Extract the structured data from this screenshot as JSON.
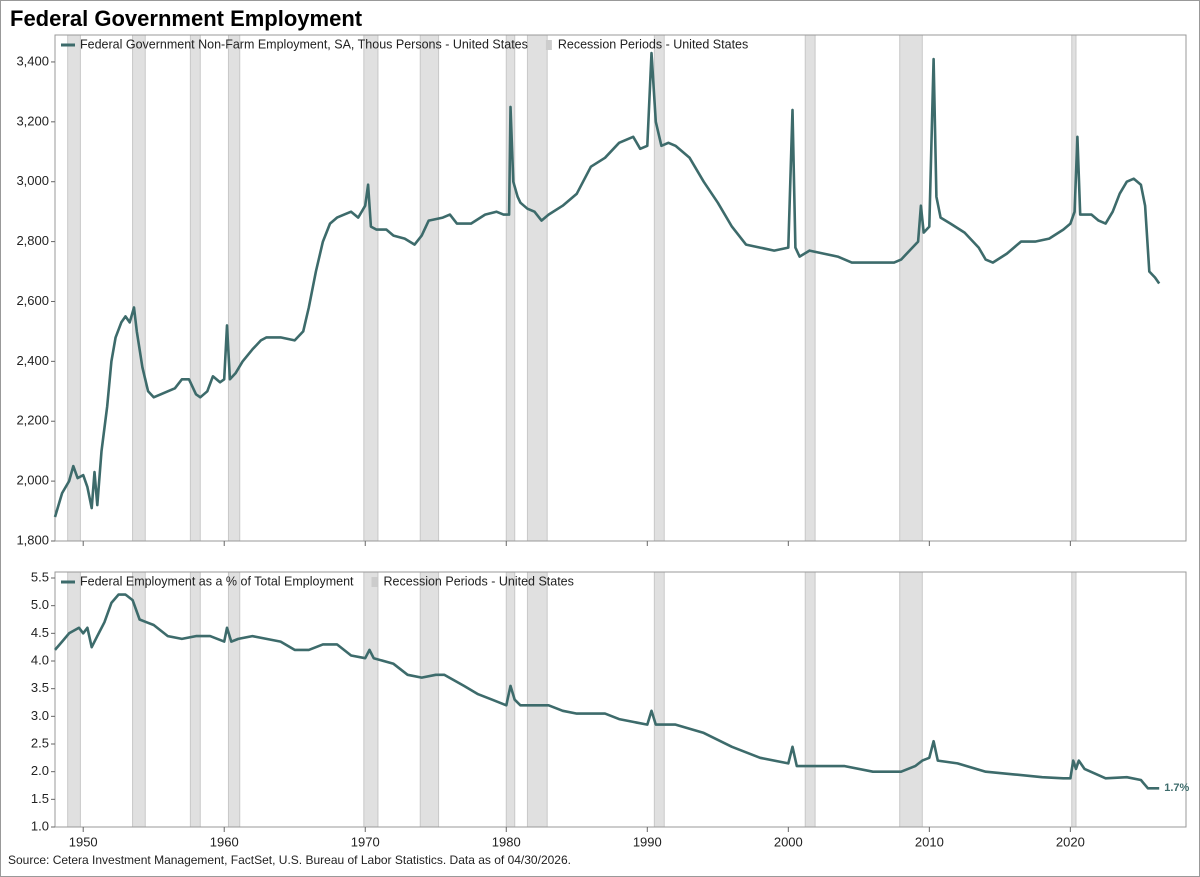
{
  "title": "Federal Government Employment",
  "source": "Source: Cetera Investment Management, FactSet, U.S. Bureau of Labor Statistics. Data as of 04/30/2026.",
  "chart_data": [
    {
      "type": "line",
      "recessions": {
        "name": "Recession Periods - United States",
        "color": "#e0e0e0",
        "periods": [
          [
            1948.9,
            1949.8
          ],
          [
            1953.5,
            1954.4
          ],
          [
            1957.6,
            1958.3
          ],
          [
            1960.3,
            1961.1
          ],
          [
            1969.9,
            1970.9
          ],
          [
            1973.9,
            1975.2
          ],
          [
            1980.0,
            1980.6
          ],
          [
            1981.5,
            1982.9
          ],
          [
            1990.5,
            1991.2
          ],
          [
            2001.2,
            2001.9
          ],
          [
            2007.9,
            2009.5
          ],
          [
            2020.1,
            2020.4
          ]
        ]
      },
      "xlim": [
        1948,
        2028.2
      ],
      "xticks": [
        1950,
        1960,
        1970,
        1980,
        1990,
        2000,
        2010,
        2020
      ],
      "ylim": [
        1800,
        3490
      ],
      "yticks": [
        {
          "value": 1800,
          "label": "1,800"
        },
        {
          "value": 2000,
          "label": "2,000"
        },
        {
          "value": 2200,
          "label": "2,200"
        },
        {
          "value": 2400,
          "label": "2,400"
        },
        {
          "value": 2600,
          "label": "2,600"
        },
        {
          "value": 2800,
          "label": "2,800"
        },
        {
          "value": 3000,
          "label": "3,000"
        },
        {
          "value": 3200,
          "label": "3,200"
        },
        {
          "value": 3400,
          "label": "3,400"
        }
      ],
      "series": [
        {
          "name": "Federal Government Non-Farm Employment, SA, Thous Persons - United States",
          "color": "#3d6b6b",
          "x": [
            1948.0,
            1948.5,
            1949.0,
            1949.3,
            1949.6,
            1950.0,
            1950.3,
            1950.6,
            1950.8,
            1951.0,
            1951.3,
            1951.7,
            1952.0,
            1952.3,
            1952.7,
            1953.0,
            1953.3,
            1953.6,
            1953.8,
            1954.2,
            1954.6,
            1955.0,
            1955.5,
            1956.0,
            1956.5,
            1957.0,
            1957.5,
            1958.0,
            1958.3,
            1958.8,
            1959.2,
            1959.7,
            1960.0,
            1960.2,
            1960.4,
            1960.8,
            1961.3,
            1962.0,
            1962.6,
            1963.0,
            1964.0,
            1965.0,
            1965.6,
            1966.0,
            1966.5,
            1967.0,
            1967.5,
            1968.0,
            1968.5,
            1969.0,
            1969.5,
            1970.0,
            1970.2,
            1970.4,
            1970.8,
            1971.5,
            1972.0,
            1972.8,
            1973.5,
            1974.0,
            1974.5,
            1975.5,
            1976.0,
            1976.5,
            1977.5,
            1978.5,
            1979.3,
            1979.8,
            1980.2,
            1980.3,
            1980.5,
            1980.8,
            1981.0,
            1981.5,
            1982.0,
            1982.5,
            1983.0,
            1984.0,
            1985.0,
            1986.0,
            1987.0,
            1988.0,
            1989.0,
            1989.5,
            1990.0,
            1990.3,
            1990.6,
            1991.0,
            1991.5,
            1992.0,
            1993.0,
            1994.0,
            1995.0,
            1996.0,
            1997.0,
            1998.0,
            1999.0,
            2000.0,
            2000.3,
            2000.5,
            2000.8,
            2001.5,
            2002.5,
            2003.5,
            2004.5,
            2005.5,
            2006.5,
            2007.5,
            2008.0,
            2008.8,
            2009.2,
            2009.4,
            2009.6,
            2010.0,
            2010.3,
            2010.5,
            2010.8,
            2011.5,
            2012.5,
            2013.5,
            2014.0,
            2014.5,
            2015.5,
            2016.5,
            2017.5,
            2018.5,
            2019.5,
            2020.0,
            2020.3,
            2020.5,
            2020.7,
            2021.5,
            2022.0,
            2022.5,
            2023.0,
            2023.5,
            2024.0,
            2024.5,
            2025.0,
            2025.3,
            2025.6,
            2026.0,
            2026.3
          ],
          "values": [
            1880,
            1960,
            2000,
            2050,
            2010,
            2020,
            1980,
            1910,
            2030,
            1920,
            2100,
            2250,
            2400,
            2480,
            2530,
            2550,
            2530,
            2580,
            2500,
            2380,
            2300,
            2280,
            2290,
            2300,
            2310,
            2340,
            2340,
            2290,
            2280,
            2300,
            2350,
            2330,
            2340,
            2520,
            2340,
            2360,
            2400,
            2440,
            2470,
            2480,
            2480,
            2470,
            2500,
            2580,
            2700,
            2800,
            2860,
            2880,
            2890,
            2900,
            2880,
            2920,
            2990,
            2850,
            2840,
            2840,
            2820,
            2810,
            2790,
            2820,
            2870,
            2880,
            2890,
            2860,
            2860,
            2890,
            2900,
            2890,
            2890,
            3250,
            3000,
            2950,
            2930,
            2910,
            2900,
            2870,
            2890,
            2920,
            2960,
            3050,
            3080,
            3130,
            3150,
            3110,
            3120,
            3430,
            3200,
            3120,
            3130,
            3120,
            3080,
            3000,
            2930,
            2850,
            2790,
            2780,
            2770,
            2780,
            3240,
            2780,
            2750,
            2770,
            2760,
            2750,
            2730,
            2730,
            2730,
            2730,
            2740,
            2780,
            2800,
            2920,
            2830,
            2850,
            3410,
            2950,
            2880,
            2860,
            2830,
            2780,
            2740,
            2730,
            2760,
            2800,
            2800,
            2810,
            2840,
            2860,
            2900,
            3150,
            2890,
            2890,
            2870,
            2860,
            2900,
            2960,
            3000,
            3010,
            2990,
            2920,
            2700,
            2680,
            2660
          ]
        }
      ]
    },
    {
      "type": "line",
      "recessions": {
        "name": "Recession Periods - United States",
        "color": "#e0e0e0",
        "periods": [
          [
            1948.9,
            1949.8
          ],
          [
            1953.5,
            1954.4
          ],
          [
            1957.6,
            1958.3
          ],
          [
            1960.3,
            1961.1
          ],
          [
            1969.9,
            1970.9
          ],
          [
            1973.9,
            1975.2
          ],
          [
            1980.0,
            1980.6
          ],
          [
            1981.5,
            1982.9
          ],
          [
            1990.5,
            1991.2
          ],
          [
            2001.2,
            2001.9
          ],
          [
            2007.9,
            2009.5
          ],
          [
            2020.1,
            2020.4
          ]
        ]
      },
      "xlim": [
        1948,
        2028.2
      ],
      "xticks": [
        1950,
        1960,
        1970,
        1980,
        1990,
        2000,
        2010,
        2020
      ],
      "ylim": [
        1.0,
        5.5
      ],
      "yticks": [
        {
          "value": 1,
          "label": "1.0"
        },
        1.5,
        {
          "value": 2,
          "label": "2.0"
        },
        2.5,
        {
          "value": 3,
          "label": "3.0"
        },
        3.5,
        {
          "value": 4,
          "label": "4.0"
        },
        4.5,
        {
          "value": 5,
          "label": "5.0"
        },
        5.5
      ],
      "series": [
        {
          "name": "Federal Employment as a % of Total Employment",
          "color": "#3d6b6b",
          "x": [
            1948.0,
            1948.5,
            1949.0,
            1949.7,
            1950.0,
            1950.3,
            1950.6,
            1951.0,
            1951.5,
            1952.0,
            1952.5,
            1953.0,
            1953.5,
            1954.0,
            1954.5,
            1955.0,
            1956.0,
            1957.0,
            1958.0,
            1959.0,
            1960.0,
            1960.2,
            1960.5,
            1961.0,
            1962.0,
            1963.0,
            1964.0,
            1965.0,
            1966.0,
            1967.0,
            1968.0,
            1969.0,
            1970.0,
            1970.3,
            1970.6,
            1972.0,
            1973.0,
            1974.0,
            1975.0,
            1975.6,
            1977.0,
            1978.0,
            1979.0,
            1980.0,
            1980.3,
            1980.6,
            1981.0,
            1982.0,
            1983.0,
            1984.0,
            1985.0,
            1987.0,
            1988.0,
            1989.0,
            1990.0,
            1990.3,
            1990.6,
            1992.0,
            1994.0,
            1996.0,
            1998.0,
            2000.0,
            2000.3,
            2000.6,
            2002.0,
            2004.0,
            2006.0,
            2008.0,
            2009.0,
            2009.5,
            2010.0,
            2010.3,
            2010.6,
            2012.0,
            2014.0,
            2016.0,
            2018.0,
            2019.5,
            2020.0,
            2020.2,
            2020.4,
            2020.6,
            2021.0,
            2022.5,
            2024.0,
            2025.0,
            2025.5,
            2026.3
          ],
          "values": [
            4.2,
            4.35,
            4.5,
            4.6,
            4.5,
            4.6,
            4.25,
            4.45,
            4.7,
            5.05,
            5.2,
            5.2,
            5.1,
            4.75,
            4.7,
            4.65,
            4.45,
            4.4,
            4.45,
            4.45,
            4.35,
            4.6,
            4.35,
            4.4,
            4.45,
            4.4,
            4.35,
            4.2,
            4.2,
            4.3,
            4.3,
            4.1,
            4.05,
            4.2,
            4.05,
            3.95,
            3.75,
            3.7,
            3.75,
            3.75,
            3.55,
            3.4,
            3.3,
            3.2,
            3.55,
            3.3,
            3.2,
            3.2,
            3.2,
            3.1,
            3.05,
            3.05,
            2.95,
            2.9,
            2.85,
            3.1,
            2.85,
            2.85,
            2.7,
            2.45,
            2.25,
            2.15,
            2.45,
            2.1,
            2.1,
            2.1,
            2.0,
            2.0,
            2.1,
            2.2,
            2.25,
            2.55,
            2.2,
            2.15,
            2.0,
            1.95,
            1.9,
            1.88,
            1.88,
            2.2,
            2.05,
            2.2,
            2.05,
            1.88,
            1.9,
            1.85,
            1.7,
            1.7
          ]
        }
      ],
      "annotations": [
        {
          "x": 2026.3,
          "y": 1.7,
          "label": "1.7%"
        }
      ]
    }
  ]
}
